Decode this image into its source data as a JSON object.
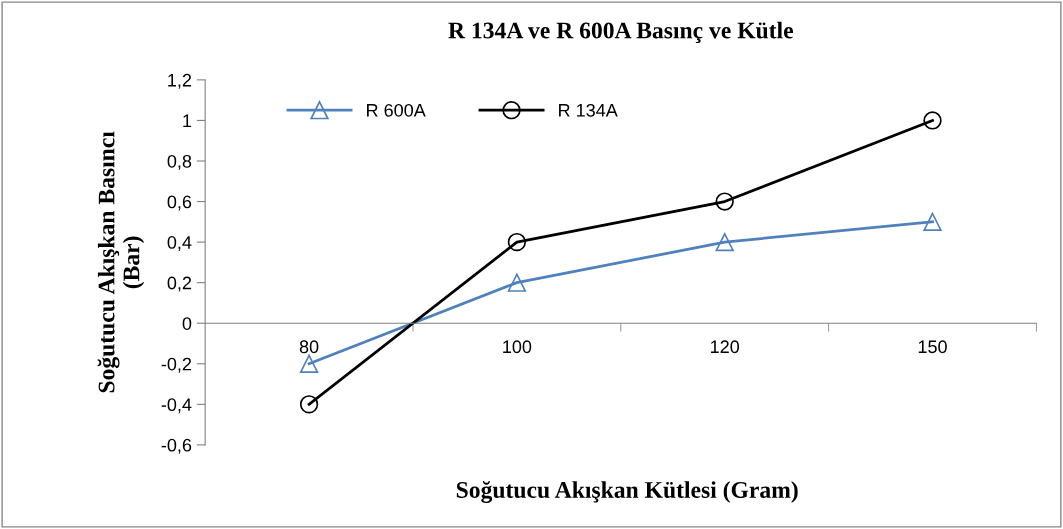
{
  "chart_data": {
    "type": "line",
    "title": "R 134A ve R 600A Basınç ve Kütle",
    "xlabel": "Soğutucu Akışkan Kütlesi (Gram)",
    "ylabel": "Soğutucu Akışkan Basıncı\n(Bar)",
    "categories": [
      "80",
      "100",
      "120",
      "150"
    ],
    "series": [
      {
        "name": "R 600A",
        "color": "#4f81bd",
        "marker": "triangle",
        "values": [
          -0.2,
          0.2,
          0.4,
          0.5
        ]
      },
      {
        "name": "R 134A",
        "color": "#000000",
        "marker": "circle",
        "values": [
          -0.4,
          0.4,
          0.6,
          1.0
        ]
      }
    ],
    "ylim": [
      -0.6,
      1.2
    ],
    "yticks": [
      {
        "value": -0.6,
        "label": "-0,6"
      },
      {
        "value": -0.4,
        "label": "-0,4"
      },
      {
        "value": -0.2,
        "label": "-0,2"
      },
      0,
      {
        "value": 0.2,
        "label": "0,2"
      },
      {
        "value": 0.4,
        "label": "0,4"
      },
      {
        "value": 0.6,
        "label": "0,6"
      },
      {
        "value": 0.8,
        "label": "0,8"
      },
      1,
      {
        "value": 1.2,
        "label": "1,2"
      }
    ],
    "grid": false,
    "legend": "top left",
    "line_style": "solid"
  }
}
